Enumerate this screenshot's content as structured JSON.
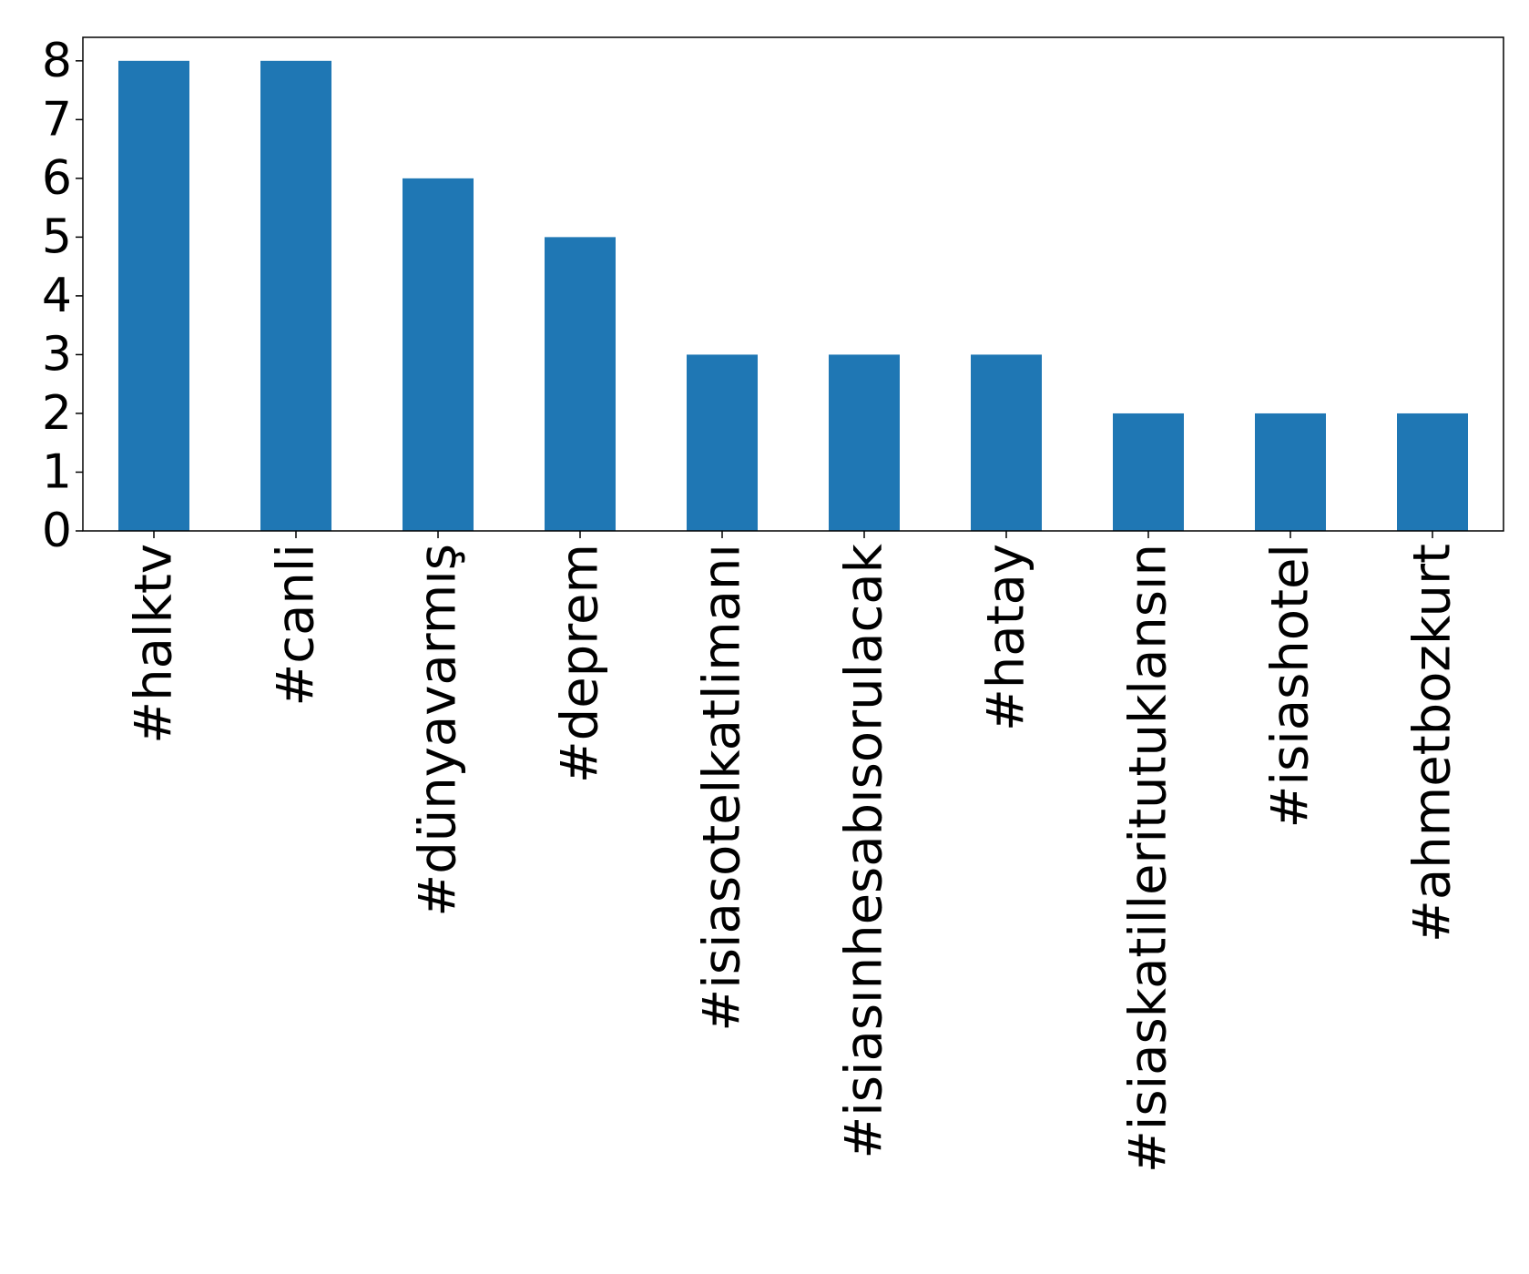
{
  "chart_data": {
    "type": "bar",
    "title": "",
    "xlabel": "",
    "ylabel": "",
    "categories": [
      "#halktv",
      "#canli",
      "#dünyavarmış",
      "#deprem",
      "#isiasotelkatlimanı",
      "#isiasınhesabısorulacak",
      "#hatay",
      "#isiaskatilleritutuklansın",
      "#isiashotel",
      "#ahmetbozkurt"
    ],
    "values": [
      8,
      8,
      6,
      5,
      3,
      3,
      3,
      2,
      2,
      2
    ],
    "ylim": [
      0,
      8.4
    ],
    "yticks": [
      "0",
      "1",
      "2",
      "3",
      "4",
      "5",
      "6",
      "7",
      "8"
    ],
    "grid": false,
    "legend": "none",
    "bar_color": "#1f77b4"
  }
}
